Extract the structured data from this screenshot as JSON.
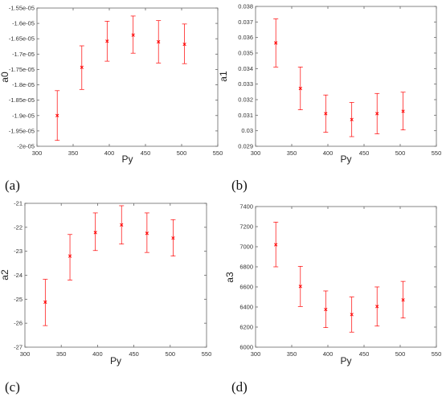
{
  "chart_data": [
    {
      "type": "scatter",
      "panel_label": "(a)",
      "xlabel": "Py",
      "ylabel": "a0",
      "xlim": [
        300,
        550
      ],
      "ylim": [
        -2e-05,
        -1.55e-05
      ],
      "x_ticks": [
        300,
        350,
        400,
        450,
        500,
        550
      ],
      "x_tick_labels": [
        "300",
        "350",
        "400",
        "450",
        "500",
        "550"
      ],
      "y_ticks": [
        -2e-05,
        -1.95e-05,
        -1.9e-05,
        -1.85e-05,
        -1.8e-05,
        -1.75e-05,
        -1.7e-05,
        -1.65e-05,
        -1.6e-05,
        -1.55e-05
      ],
      "y_tick_labels": [
        "-2e-05",
        "-1.95e-05",
        "-1.9e-05",
        "-1.85e-05",
        "-1.8e-05",
        "-1.75e-05",
        "-1.7e-05",
        "-1.65e-05",
        "-1.6e-05",
        "-1.55e-05"
      ],
      "marker_color": "#ff0000",
      "points": [
        {
          "x": 328,
          "y": -1.9e-05,
          "err_low": -1.981e-05,
          "err_high": -1.819e-05
        },
        {
          "x": 362,
          "y": -1.743e-05,
          "err_low": -1.815e-05,
          "err_high": -1.673e-05
        },
        {
          "x": 397,
          "y": -1.658e-05,
          "err_low": -1.723e-05,
          "err_high": -1.593e-05
        },
        {
          "x": 433,
          "y": -1.638e-05,
          "err_low": -1.697e-05,
          "err_high": -1.576e-05
        },
        {
          "x": 468,
          "y": -1.66e-05,
          "err_low": -1.729e-05,
          "err_high": -1.591e-05
        },
        {
          "x": 504,
          "y": -1.668e-05,
          "err_low": -1.731e-05,
          "err_high": -1.602e-05
        }
      ]
    },
    {
      "type": "scatter",
      "panel_label": "(b)",
      "xlabel": "Py",
      "ylabel": "a1",
      "xlim": [
        300,
        550
      ],
      "ylim": [
        0.029,
        0.038
      ],
      "x_ticks": [
        300,
        350,
        400,
        450,
        500,
        550
      ],
      "x_tick_labels": [
        "300",
        "350",
        "400",
        "450",
        "500",
        "550"
      ],
      "y_ticks": [
        0.029,
        0.03,
        0.031,
        0.032,
        0.033,
        0.034,
        0.035,
        0.036,
        0.037,
        0.038
      ],
      "y_tick_labels": [
        "0.029",
        "0.03",
        "0.031",
        "0.032",
        "0.033",
        "0.034",
        "0.035",
        "0.036",
        "0.037",
        "0.038"
      ],
      "marker_color": "#ff0000",
      "points": [
        {
          "x": 328,
          "y": 0.03565,
          "err_low": 0.0341,
          "err_high": 0.0372
        },
        {
          "x": 362,
          "y": 0.03272,
          "err_low": 0.03135,
          "err_high": 0.0341
        },
        {
          "x": 397,
          "y": 0.0311,
          "err_low": 0.0299,
          "err_high": 0.0323
        },
        {
          "x": 433,
          "y": 0.03072,
          "err_low": 0.02962,
          "err_high": 0.03182
        },
        {
          "x": 468,
          "y": 0.0311,
          "err_low": 0.0298,
          "err_high": 0.0324
        },
        {
          "x": 504,
          "y": 0.03125,
          "err_low": 0.03005,
          "err_high": 0.03248
        }
      ]
    },
    {
      "type": "scatter",
      "panel_label": "(c)",
      "xlabel": "Py",
      "ylabel": "a2",
      "xlim": [
        300,
        550
      ],
      "ylim": [
        -27,
        -21
      ],
      "x_ticks": [
        300,
        350,
        400,
        450,
        500,
        550
      ],
      "x_tick_labels": [
        "300",
        "350",
        "400",
        "450",
        "500",
        "550"
      ],
      "y_ticks": [
        -27,
        -26,
        -25,
        -24,
        -23,
        -22,
        -21
      ],
      "y_tick_labels": [
        "-27",
        "-26",
        "-25",
        "-24",
        "-23",
        "-22",
        "-21"
      ],
      "marker_color": "#ff0000",
      "points": [
        {
          "x": 328,
          "y": -25.12,
          "err_low": -26.1,
          "err_high": -24.17
        },
        {
          "x": 362,
          "y": -23.2,
          "err_low": -24.2,
          "err_high": -22.3
        },
        {
          "x": 397,
          "y": -22.22,
          "err_low": -22.97,
          "err_high": -21.4
        },
        {
          "x": 433,
          "y": -21.9,
          "err_low": -22.7,
          "err_high": -21.1
        },
        {
          "x": 468,
          "y": -22.25,
          "err_low": -23.05,
          "err_high": -21.4
        },
        {
          "x": 504,
          "y": -22.45,
          "err_low": -23.2,
          "err_high": -21.68
        }
      ]
    },
    {
      "type": "scatter",
      "panel_label": "(d)",
      "xlabel": "Py",
      "ylabel": "a3",
      "xlim": [
        300,
        550
      ],
      "ylim": [
        6000,
        7400
      ],
      "x_ticks": [
        300,
        350,
        400,
        450,
        500,
        550
      ],
      "x_tick_labels": [
        "300",
        "350",
        "400",
        "450",
        "500",
        "550"
      ],
      "y_ticks": [
        6000,
        6200,
        6400,
        6600,
        6800,
        7000,
        7200,
        7400
      ],
      "y_tick_labels": [
        "6000",
        "6200",
        "6400",
        "6600",
        "6800",
        "7000",
        "7200",
        "7400"
      ],
      "marker_color": "#ff0000",
      "points": [
        {
          "x": 328,
          "y": 7020,
          "err_low": 6800,
          "err_high": 7245
        },
        {
          "x": 362,
          "y": 6605,
          "err_low": 6405,
          "err_high": 6805
        },
        {
          "x": 397,
          "y": 6375,
          "err_low": 6195,
          "err_high": 6560
        },
        {
          "x": 433,
          "y": 6325,
          "err_low": 6150,
          "err_high": 6500
        },
        {
          "x": 468,
          "y": 6405,
          "err_low": 6210,
          "err_high": 6600
        },
        {
          "x": 504,
          "y": 6470,
          "err_low": 6290,
          "err_high": 6655
        }
      ]
    }
  ]
}
